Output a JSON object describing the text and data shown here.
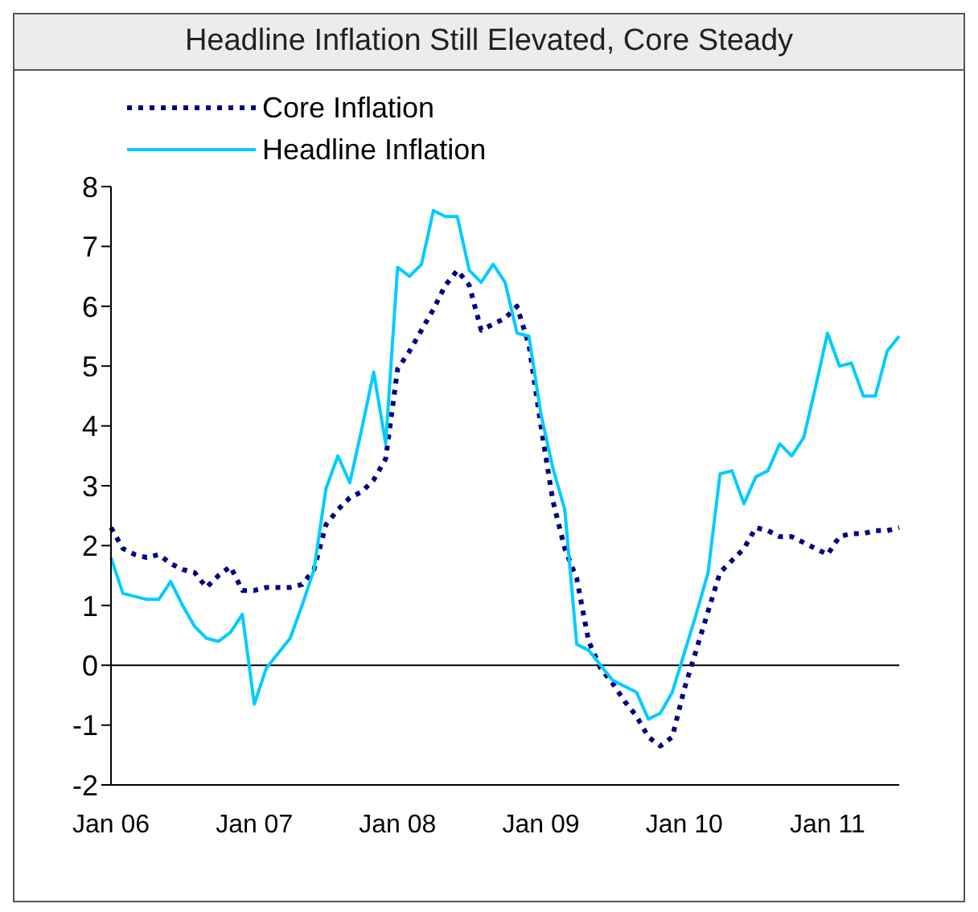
{
  "chart_data": {
    "type": "line",
    "title": "Headline Inflation Still Elevated, Core Steady",
    "categories": [
      "Jan 06",
      null,
      null,
      null,
      null,
      null,
      null,
      null,
      null,
      null,
      null,
      null,
      "Jan 07",
      null,
      null,
      null,
      null,
      null,
      null,
      null,
      null,
      null,
      null,
      null,
      "Jan 08",
      null,
      null,
      null,
      null,
      null,
      null,
      null,
      null,
      null,
      null,
      null,
      "Jan 09",
      null,
      null,
      null,
      null,
      null,
      null,
      null,
      null,
      null,
      null,
      null,
      "Jan 10",
      null,
      null,
      null,
      null,
      null,
      null,
      null,
      null,
      null,
      null,
      null,
      "Jan 11",
      null,
      null,
      null,
      null,
      null,
      null
    ],
    "series": [
      {
        "name": "Core Inflation",
        "color": "#000080",
        "line_style": "dotted",
        "values": [
          2.3,
          1.95,
          1.85,
          1.8,
          1.85,
          1.7,
          1.6,
          1.55,
          1.3,
          1.5,
          1.65,
          1.25,
          1.25,
          1.3,
          1.3,
          1.3,
          1.35,
          1.6,
          2.35,
          2.6,
          2.8,
          2.9,
          3.1,
          3.45,
          4.95,
          5.25,
          5.6,
          5.95,
          6.35,
          6.6,
          6.35,
          5.6,
          5.7,
          5.8,
          6.0,
          5.35,
          4.0,
          2.75,
          1.95,
          1.45,
          0.4,
          -0.05,
          -0.3,
          -0.6,
          -0.85,
          -1.2,
          -1.35,
          -1.2,
          -0.4,
          0.25,
          0.9,
          1.55,
          1.75,
          1.95,
          2.3,
          2.25,
          2.15,
          2.15,
          2.05,
          1.95,
          1.85,
          2.15,
          2.2,
          2.2,
          2.25,
          2.25,
          2.3
        ]
      },
      {
        "name": "Headline Inflation",
        "color": "#00ccff",
        "line_style": "solid",
        "values": [
          1.8,
          1.2,
          1.15,
          1.1,
          1.1,
          1.4,
          1.0,
          0.65,
          0.45,
          0.4,
          0.55,
          0.85,
          -0.65,
          -0.05,
          0.2,
          0.45,
          1.0,
          1.6,
          2.95,
          3.5,
          3.05,
          3.95,
          4.9,
          3.7,
          6.65,
          6.5,
          6.7,
          7.6,
          7.5,
          7.5,
          6.6,
          6.4,
          6.7,
          6.4,
          5.55,
          5.5,
          4.2,
          3.3,
          2.6,
          0.35,
          0.25,
          0,
          -0.25,
          -0.35,
          -0.45,
          -0.9,
          -0.8,
          -0.45,
          0.2,
          0.85,
          1.55,
          3.2,
          3.25,
          2.7,
          3.15,
          3.25,
          3.7,
          3.5,
          3.8,
          4.65,
          5.55,
          5.0,
          5.05,
          4.5,
          4.5,
          5.25,
          5.5
        ]
      }
    ],
    "ylim": [
      -2,
      8
    ],
    "yticks": [
      -2,
      -1,
      0,
      1,
      2,
      3,
      4,
      5,
      6,
      7,
      8
    ],
    "ref_lines": [
      {
        "axis": "y",
        "value": 0,
        "color": "#000000"
      }
    ],
    "grid": false,
    "legend": "top left",
    "marker": "none"
  }
}
